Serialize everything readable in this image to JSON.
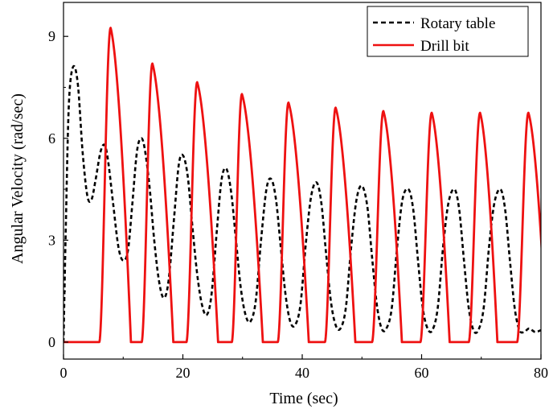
{
  "chart_data": {
    "type": "line",
    "xlabel": "Time (sec)",
    "ylabel": "Angular Velocity (rad/sec)",
    "xlim": [
      0,
      80
    ],
    "ylim": [
      -0.5,
      10
    ],
    "xticks": [
      0,
      20,
      40,
      60,
      80
    ],
    "yticks": [
      0,
      3,
      6,
      9
    ],
    "grid": false,
    "legend_position": "top-right",
    "series": [
      {
        "name": "Rotary table",
        "color": "#000000",
        "line_style": "dashed",
        "points": [
          [
            0,
            0
          ],
          [
            0.4,
            3.5
          ],
          [
            0.9,
            7.0
          ],
          [
            1.6,
            8.1
          ],
          [
            2.4,
            7.6
          ],
          [
            3.2,
            5.6
          ],
          [
            4.0,
            4.3
          ],
          [
            4.7,
            4.2
          ],
          [
            5.4,
            4.8
          ],
          [
            6.2,
            5.6
          ],
          [
            6.9,
            5.8
          ],
          [
            7.5,
            5.3
          ],
          [
            8.3,
            4.1
          ],
          [
            9.2,
            2.8
          ],
          [
            10.0,
            2.4
          ],
          [
            10.8,
            2.7
          ],
          [
            11.5,
            4.0
          ],
          [
            12.3,
            5.6
          ],
          [
            13.0,
            6.0
          ],
          [
            13.6,
            5.7
          ],
          [
            14.4,
            4.6
          ],
          [
            15.2,
            3.0
          ],
          [
            16.0,
            1.8
          ],
          [
            16.8,
            1.3
          ],
          [
            17.6,
            1.8
          ],
          [
            18.5,
            3.6
          ],
          [
            19.3,
            5.2
          ],
          [
            20.0,
            5.5
          ],
          [
            20.8,
            4.9
          ],
          [
            21.6,
            3.4
          ],
          [
            22.4,
            2.0
          ],
          [
            23.2,
            1.1
          ],
          [
            24.0,
            0.8
          ],
          [
            24.8,
            1.4
          ],
          [
            25.7,
            3.3
          ],
          [
            26.5,
            4.8
          ],
          [
            27.3,
            5.1
          ],
          [
            28.1,
            4.4
          ],
          [
            28.9,
            3.0
          ],
          [
            29.7,
            1.6
          ],
          [
            30.5,
            0.8
          ],
          [
            31.3,
            0.6
          ],
          [
            32.2,
            1.2
          ],
          [
            33.1,
            3.0
          ],
          [
            34.0,
            4.5
          ],
          [
            34.8,
            4.8
          ],
          [
            35.6,
            4.2
          ],
          [
            36.4,
            2.8
          ],
          [
            37.2,
            1.4
          ],
          [
            38.0,
            0.6
          ],
          [
            38.8,
            0.5
          ],
          [
            39.7,
            1.1
          ],
          [
            40.6,
            2.9
          ],
          [
            41.5,
            4.3
          ],
          [
            42.4,
            4.7
          ],
          [
            43.2,
            4.1
          ],
          [
            44.0,
            2.6
          ],
          [
            44.8,
            1.2
          ],
          [
            45.6,
            0.5
          ],
          [
            46.4,
            0.4
          ],
          [
            47.3,
            1.0
          ],
          [
            48.2,
            2.8
          ],
          [
            49.1,
            4.2
          ],
          [
            50.0,
            4.6
          ],
          [
            50.9,
            4.0
          ],
          [
            51.7,
            2.5
          ],
          [
            52.5,
            1.1
          ],
          [
            53.3,
            0.4
          ],
          [
            54.1,
            0.4
          ],
          [
            55.0,
            1.0
          ],
          [
            55.9,
            2.8
          ],
          [
            56.8,
            4.2
          ],
          [
            57.8,
            4.5
          ],
          [
            58.6,
            3.9
          ],
          [
            59.4,
            2.4
          ],
          [
            60.2,
            1.0
          ],
          [
            61.0,
            0.4
          ],
          [
            61.8,
            0.35
          ],
          [
            62.7,
            1.0
          ],
          [
            63.6,
            2.8
          ],
          [
            64.5,
            4.1
          ],
          [
            65.5,
            4.5
          ],
          [
            66.3,
            3.9
          ],
          [
            67.1,
            2.4
          ],
          [
            67.9,
            1.0
          ],
          [
            68.7,
            0.35
          ],
          [
            69.5,
            0.35
          ],
          [
            70.4,
            1.0
          ],
          [
            71.3,
            2.8
          ],
          [
            72.2,
            4.1
          ],
          [
            73.2,
            4.5
          ],
          [
            74.0,
            3.9
          ],
          [
            74.8,
            2.4
          ],
          [
            75.6,
            1.0
          ],
          [
            76.4,
            0.35
          ],
          [
            77.2,
            0.3
          ],
          [
            78.0,
            0.4
          ],
          [
            79.0,
            0.3
          ],
          [
            80.0,
            0.35
          ]
        ]
      },
      {
        "name": "Drill bit",
        "color": "#ee1111",
        "line_style": "solid",
        "pulses": [
          {
            "start": 6.0,
            "peak_t": 7.9,
            "peak": 9.25,
            "end": 11.3
          },
          {
            "start": 13.1,
            "peak_t": 14.9,
            "peak": 8.2,
            "end": 18.4
          },
          {
            "start": 20.6,
            "peak_t": 22.4,
            "peak": 7.65,
            "end": 25.9
          },
          {
            "start": 28.2,
            "peak_t": 29.9,
            "peak": 7.3,
            "end": 33.4
          },
          {
            "start": 35.9,
            "peak_t": 37.7,
            "peak": 7.05,
            "end": 41.1
          },
          {
            "start": 43.8,
            "peak_t": 45.6,
            "peak": 6.9,
            "end": 48.9
          },
          {
            "start": 51.7,
            "peak_t": 53.6,
            "peak": 6.8,
            "end": 56.7
          },
          {
            "start": 59.8,
            "peak_t": 61.7,
            "peak": 6.75,
            "end": 64.7
          },
          {
            "start": 67.9,
            "peak_t": 69.8,
            "peak": 6.75,
            "end": 72.7
          },
          {
            "start": 76.0,
            "peak_t": 77.9,
            "peak": 6.75,
            "end": 81.0
          }
        ]
      }
    ]
  }
}
